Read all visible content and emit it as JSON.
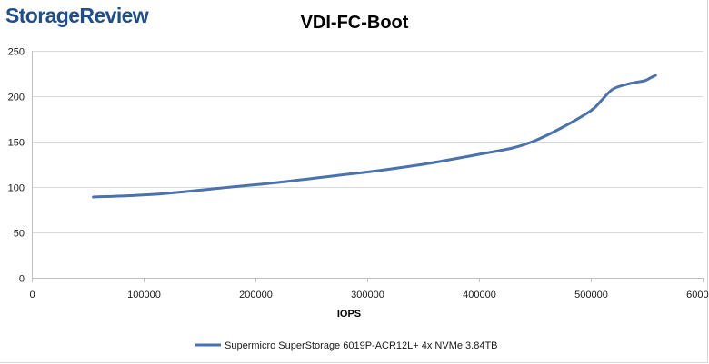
{
  "brand": {
    "logo_text": "StorageReview"
  },
  "chart_data": {
    "type": "line",
    "title": "VDI-FC-Boot",
    "xlabel": "IOPS",
    "ylabel": "",
    "xlim": [
      0,
      600000
    ],
    "ylim": [
      0,
      250
    ],
    "x_ticks": [
      0,
      100000,
      200000,
      300000,
      400000,
      500000,
      600000
    ],
    "x_tick_labels": [
      "0",
      "100000",
      "200000",
      "300000",
      "400000",
      "500000",
      "600000"
    ],
    "y_ticks": [
      0,
      50,
      100,
      150,
      200,
      250
    ],
    "y_tick_labels": [
      "0",
      "50",
      "100",
      "150",
      "200",
      "250"
    ],
    "grid": "horizontal",
    "legend_position": "bottom",
    "series": [
      {
        "name": "Supermicro SuperStorage 6019P-ACR12L+ 4x NVMe 3.84TB",
        "color": "#4a73ad",
        "x": [
          55000,
          110000,
          170000,
          220000,
          275000,
          310000,
          355000,
          400000,
          430000,
          450000,
          475000,
          500000,
          510000,
          520000,
          535000,
          548000,
          553000,
          558000
        ],
        "y": [
          89,
          92,
          99,
          105,
          113,
          118,
          126,
          136,
          143,
          151,
          166,
          184,
          196,
          208,
          214,
          217,
          220,
          223
        ]
      }
    ]
  }
}
